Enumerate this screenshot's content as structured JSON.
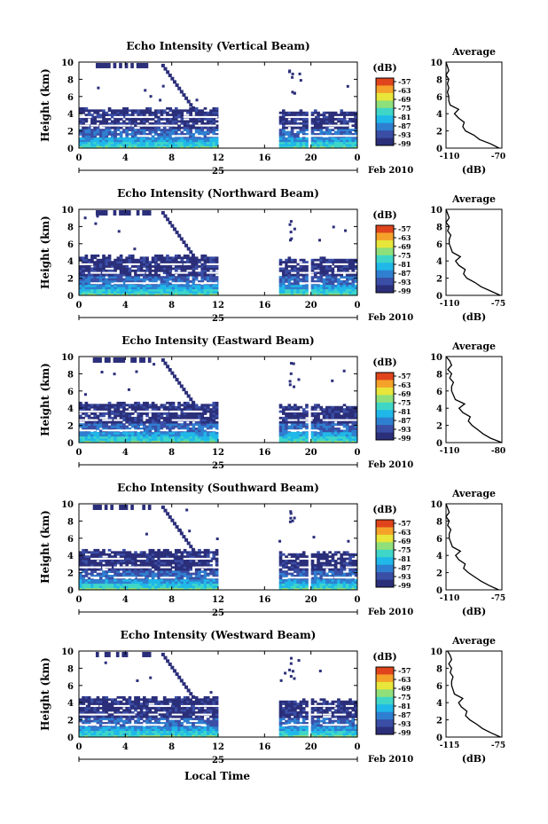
{
  "figure": {
    "x_axis_title": "Local Time",
    "date_label": "Feb 2010",
    "day_label": "25",
    "units_label": "(dB)",
    "profile_title": "Average",
    "profile_xlabel": "(dB)",
    "colorbar_ticks": [
      "-57",
      "-63",
      "-69",
      "-75",
      "-81",
      "-87",
      "-93",
      "-99"
    ],
    "colors": [
      "#2b2f7a",
      "#3a4ea6",
      "#2f7fd0",
      "#20b8e8",
      "#3fd6c8",
      "#8fe07a",
      "#e8e63a",
      "#f5a22a",
      "#e0441c"
    ]
  },
  "chart_data": [
    {
      "type": "heatmap",
      "title": "Echo Intensity (Vertical Beam)",
      "ylabel": "Height (km)",
      "xlabel": "",
      "xlim": [
        0,
        24
      ],
      "ylim": [
        0,
        10
      ],
      "x_ticks": [
        "0",
        "4",
        "8",
        "12",
        "16",
        "20",
        "0"
      ],
      "y_ticks": [
        "0",
        "2",
        "4",
        "6",
        "8",
        "10"
      ],
      "colorbar_range_dB": [
        -99,
        -57
      ],
      "data_gaps_hours": [
        [
          12,
          17.2
        ],
        [
          19.6,
          20
        ]
      ],
      "profile": {
        "title": "Average",
        "xlabel": "(dB)",
        "xlim": [
          -110,
          -70
        ],
        "x_ticks": [
          "-110",
          "-70"
        ],
        "ylim": [
          0,
          10
        ],
        "heights_km": [
          0,
          0.5,
          1,
          1.5,
          2,
          2.5,
          3,
          3.5,
          4,
          4.5,
          5,
          5.5,
          6,
          6.5,
          7,
          7.5,
          8,
          8.5,
          9,
          9.5,
          10
        ],
        "values_dB": [
          -72,
          -78,
          -86,
          -90,
          -96,
          -98,
          -97,
          -101,
          -104,
          -101,
          -107,
          -108,
          -108,
          -109,
          -108,
          -109,
          -108,
          -110,
          -108,
          -109,
          -110
        ]
      }
    },
    {
      "type": "heatmap",
      "title": "Echo Intensity (Northward Beam)",
      "ylabel": "Height (km)",
      "xlabel": "",
      "xlim": [
        0,
        24
      ],
      "ylim": [
        0,
        10
      ],
      "x_ticks": [
        "0",
        "4",
        "8",
        "12",
        "16",
        "20",
        "0"
      ],
      "y_ticks": [
        "0",
        "2",
        "4",
        "6",
        "8",
        "10"
      ],
      "colorbar_range_dB": [
        -99,
        -57
      ],
      "data_gaps_hours": [
        [
          12,
          17.2
        ],
        [
          19.6,
          20
        ]
      ],
      "profile": {
        "title": "Average",
        "xlabel": "(dB)",
        "xlim": [
          -110,
          -75
        ],
        "x_ticks": [
          "-110",
          "-75"
        ],
        "ylim": [
          0,
          10
        ],
        "heights_km": [
          0,
          0.5,
          1,
          1.5,
          2,
          2.5,
          3,
          3.5,
          4,
          4.5,
          5,
          5.5,
          6,
          6.5,
          7,
          7.5,
          8,
          8.5,
          9,
          9.5,
          10
        ],
        "values_dB": [
          -76,
          -82,
          -88,
          -92,
          -97,
          -99,
          -98,
          -102,
          -104,
          -101,
          -106,
          -107,
          -108,
          -108,
          -107,
          -109,
          -108,
          -110,
          -108,
          -109,
          -110
        ]
      }
    },
    {
      "type": "heatmap",
      "title": "Echo Intensity (Eastward Beam)",
      "ylabel": "Height (km)",
      "xlabel": "",
      "xlim": [
        0,
        24
      ],
      "ylim": [
        0,
        10
      ],
      "x_ticks": [
        "0",
        "4",
        "8",
        "12",
        "16",
        "20",
        "0"
      ],
      "y_ticks": [
        "0",
        "2",
        "4",
        "6",
        "8",
        "10"
      ],
      "colorbar_range_dB": [
        -99,
        -57
      ],
      "data_gaps_hours": [
        [
          12,
          17.2
        ],
        [
          19.6,
          20
        ]
      ],
      "profile": {
        "title": "Average",
        "xlabel": "",
        "xlim": [
          -110,
          -80
        ],
        "x_ticks": [
          "-110",
          "-80"
        ],
        "ylim": [
          0,
          10
        ],
        "heights_km": [
          0,
          0.5,
          1,
          1.5,
          2,
          2.5,
          3,
          3.5,
          4,
          4.5,
          5,
          5.5,
          6,
          6.5,
          7,
          7.5,
          8,
          8.5,
          9,
          9.5,
          10
        ],
        "values_dB": [
          -80,
          -86,
          -90,
          -93,
          -96,
          -98,
          -97,
          -101,
          -103,
          -100,
          -105,
          -106,
          -107,
          -107,
          -106,
          -108,
          -107,
          -109,
          -107,
          -108,
          -110
        ]
      }
    },
    {
      "type": "heatmap",
      "title": "Echo Intensity (Southward Beam)",
      "ylabel": "Height (km)",
      "xlabel": "",
      "xlim": [
        0,
        24
      ],
      "ylim": [
        0,
        10
      ],
      "x_ticks": [
        "0",
        "4",
        "8",
        "12",
        "16",
        "20",
        "0"
      ],
      "y_ticks": [
        "0",
        "2",
        "4",
        "6",
        "8",
        "10"
      ],
      "colorbar_range_dB": [
        -99,
        -57
      ],
      "data_gaps_hours": [
        [
          12,
          17.2
        ],
        [
          19.6,
          20
        ]
      ],
      "profile": {
        "title": "Average",
        "xlabel": "(dB)",
        "xlim": [
          -110,
          -75
        ],
        "x_ticks": [
          "-110",
          "-75"
        ],
        "ylim": [
          0,
          10
        ],
        "heights_km": [
          0,
          0.5,
          1,
          1.5,
          2,
          2.5,
          3,
          3.5,
          4,
          4.5,
          5,
          5.5,
          6,
          6.5,
          7,
          7.5,
          8,
          8.5,
          9,
          9.5,
          10
        ],
        "values_dB": [
          -77,
          -83,
          -88,
          -92,
          -96,
          -99,
          -98,
          -102,
          -104,
          -101,
          -106,
          -107,
          -108,
          -108,
          -107,
          -109,
          -108,
          -110,
          -108,
          -109,
          -110
        ]
      }
    },
    {
      "type": "heatmap",
      "title": "Echo Intensity (Westward Beam)",
      "ylabel": "Height (km)",
      "xlabel": "Local Time",
      "xlim": [
        0,
        24
      ],
      "ylim": [
        0,
        10
      ],
      "x_ticks": [
        "0",
        "4",
        "8",
        "12",
        "16",
        "20",
        "0"
      ],
      "y_ticks": [
        "0",
        "2",
        "4",
        "6",
        "8",
        "10"
      ],
      "colorbar_range_dB": [
        -99,
        -57
      ],
      "data_gaps_hours": [
        [
          12,
          17.2
        ],
        [
          19.6,
          20
        ]
      ],
      "profile": {
        "title": "Average",
        "xlabel": "(dB)",
        "xlim": [
          -115,
          -75
        ],
        "x_ticks": [
          "-115",
          "-75"
        ],
        "ylim": [
          0,
          10
        ],
        "heights_km": [
          0,
          0.5,
          1,
          1.5,
          2,
          2.5,
          3,
          3.5,
          4,
          4.5,
          5,
          5.5,
          6,
          6.5,
          7,
          7.5,
          8,
          8.5,
          9,
          9.5,
          10
        ],
        "values_dB": [
          -76,
          -83,
          -89,
          -93,
          -98,
          -101,
          -100,
          -104,
          -106,
          -103,
          -109,
          -110,
          -111,
          -111,
          -110,
          -112,
          -111,
          -113,
          -111,
          -112,
          -114
        ]
      }
    }
  ]
}
